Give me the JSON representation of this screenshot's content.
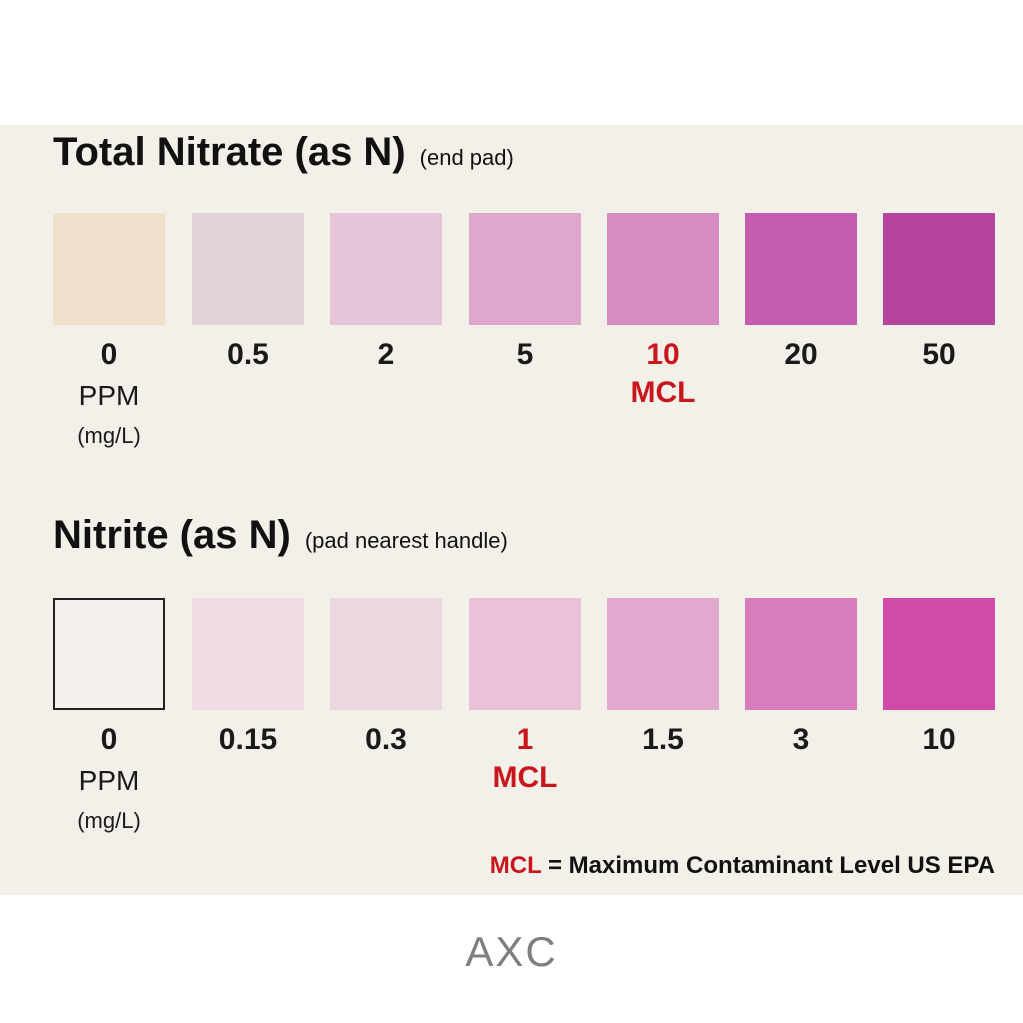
{
  "sections": [
    {
      "title": "Total Nitrate (as N)",
      "subtitle": "(end pad)",
      "unit": "PPM",
      "unit_detail": "(mg/L)",
      "swatches": [
        {
          "value": 0,
          "color": "#efe0cc"
        },
        {
          "value": 0.5,
          "color": "#e0d3d7"
        },
        {
          "value": 2,
          "color": "#e6c4d9"
        },
        {
          "value": 5,
          "color": "#dea7cc"
        },
        {
          "value": 10,
          "note": "MCL",
          "color": "#d68cc2"
        },
        {
          "value": 20,
          "color": "#c45dae"
        },
        {
          "value": 50,
          "color": "#b5459c"
        }
      ]
    },
    {
      "title": "Nitrite (as N)",
      "subtitle": "(pad nearest handle)",
      "unit": "PPM",
      "unit_detail": "(mg/L)",
      "swatches": [
        {
          "value": 0,
          "color": "#f4f1ec"
        },
        {
          "value": 0.15,
          "color": "#f0dce4"
        },
        {
          "value": 0.3,
          "color": "#ecd6df"
        },
        {
          "value": 1,
          "note": "MCL",
          "color": "#e9c2d9"
        },
        {
          "value": 1.5,
          "color": "#e1a9cd"
        },
        {
          "value": 3,
          "color": "#d77dbc"
        },
        {
          "value": 10,
          "color": "#cf4ba7"
        }
      ]
    }
  ],
  "footnote": {
    "term": "MCL",
    "definition": "= Maximum Contaminant Level US EPA"
  },
  "logo": "AXC"
}
